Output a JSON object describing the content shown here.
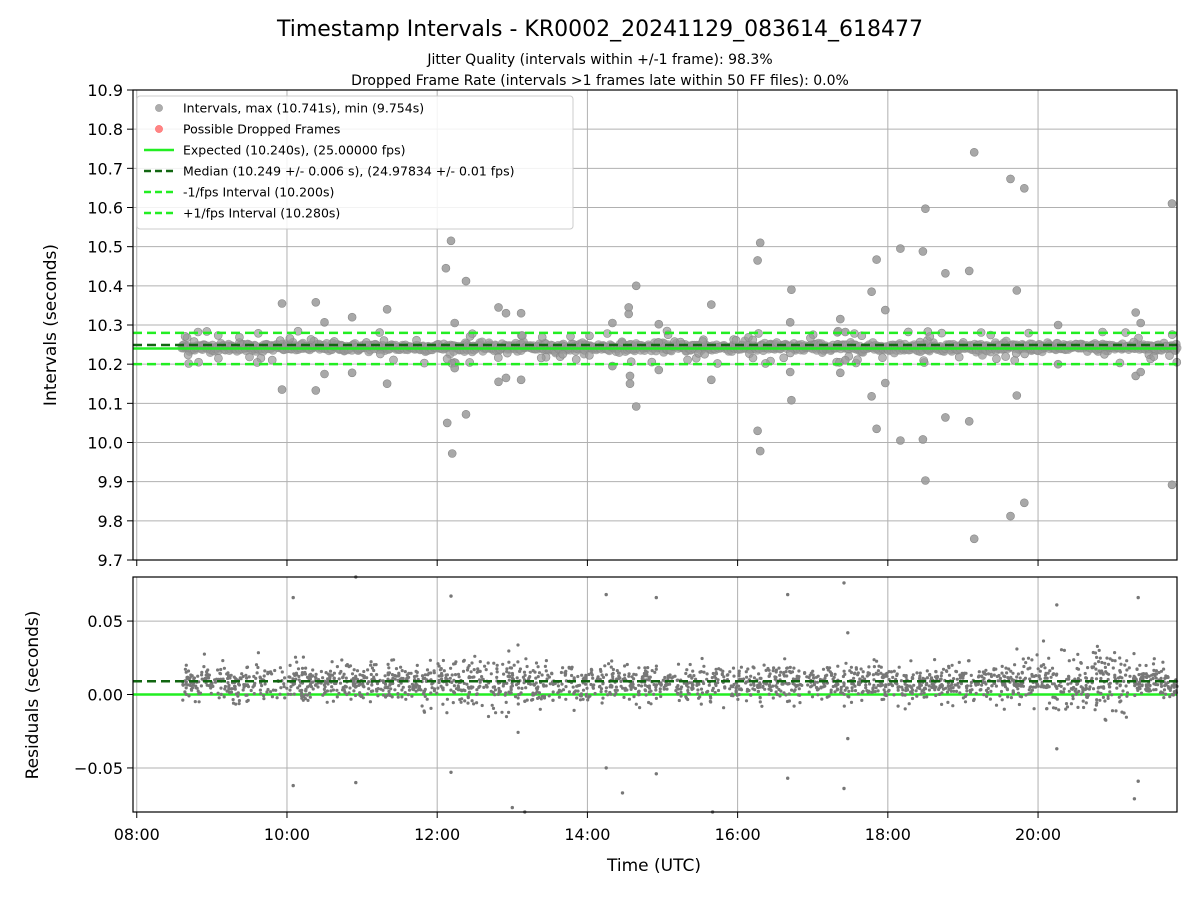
{
  "chart_data": [
    {
      "type": "scatter",
      "title": "Timestamp Intervals - KR0002_20241129_083614_618477",
      "subtitle_lines": [
        "Jitter Quality (intervals within +/-1 frame): 98.3%",
        "Dropped Frame Rate (intervals >1 frames late within 50 FF files): 0.0%"
      ],
      "xlabel": "",
      "ylabel": "Intervals (seconds)",
      "xlim_hours": [
        7.95,
        21.85
      ],
      "ylim": [
        9.7,
        10.9
      ],
      "yticks": [
        "9.7",
        "9.8",
        "9.9",
        "10.0",
        "10.1",
        "10.2",
        "10.3",
        "10.4",
        "10.5",
        "10.6",
        "10.7",
        "10.8",
        "10.9"
      ],
      "grid": true,
      "legend_position": "upper-left",
      "legend": [
        {
          "label": "Intervals, max (10.741s), min (9.754s)",
          "kind": "marker",
          "color": "#999999"
        },
        {
          "label": "Possible Dropped Frames",
          "kind": "marker",
          "color": "#ff6666"
        },
        {
          "label": "Expected (10.240s), (25.00000 fps)",
          "kind": "solid",
          "color": "#22ee22"
        },
        {
          "label": "Median (10.249 +/- 0.006 s), (24.97834 +/- 0.01 fps)",
          "kind": "dashed",
          "color": "#116611"
        },
        {
          "label": "-1/fps Interval (10.200s)",
          "kind": "dashed",
          "color": "#22ee22"
        },
        {
          "label": "+1/fps Interval (10.280s)",
          "kind": "dashed",
          "color": "#22ee22"
        }
      ],
      "reference_lines": {
        "expected": 10.24,
        "median": 10.249,
        "minus_one": 10.2,
        "plus_one": 10.28
      },
      "data_range_hours": [
        8.6,
        21.85
      ],
      "outliers": [
        {
          "x": "09:56",
          "y": 10.355
        },
        {
          "x": "09:56",
          "y": 10.135
        },
        {
          "x": "10:23",
          "y": 10.358
        },
        {
          "x": "10:23",
          "y": 10.133
        },
        {
          "x": "10:30",
          "y": 10.307
        },
        {
          "x": "10:30",
          "y": 10.175
        },
        {
          "x": "10:52",
          "y": 10.32
        },
        {
          "x": "10:52",
          "y": 10.178
        },
        {
          "x": "11:20",
          "y": 10.34
        },
        {
          "x": "11:20",
          "y": 10.15
        },
        {
          "x": "12:07",
          "y": 10.445
        },
        {
          "x": "12:08",
          "y": 10.05
        },
        {
          "x": "12:11",
          "y": 10.515
        },
        {
          "x": "12:12",
          "y": 9.972
        },
        {
          "x": "12:14",
          "y": 10.305
        },
        {
          "x": "12:14",
          "y": 10.19
        },
        {
          "x": "12:23",
          "y": 10.412
        },
        {
          "x": "12:23",
          "y": 10.072
        },
        {
          "x": "12:49",
          "y": 10.345
        },
        {
          "x": "12:49",
          "y": 10.155
        },
        {
          "x": "12:55",
          "y": 10.33
        },
        {
          "x": "12:55",
          "y": 10.165
        },
        {
          "x": "13:07",
          "y": 10.33
        },
        {
          "x": "13:07",
          "y": 10.16
        },
        {
          "x": "14:20",
          "y": 10.305
        },
        {
          "x": "14:20",
          "y": 10.195
        },
        {
          "x": "14:33",
          "y": 10.345
        },
        {
          "x": "14:33",
          "y": 10.328
        },
        {
          "x": "14:34",
          "y": 10.17
        },
        {
          "x": "14:34",
          "y": 10.15
        },
        {
          "x": "14:39",
          "y": 10.4
        },
        {
          "x": "14:39",
          "y": 10.092
        },
        {
          "x": "14:57",
          "y": 10.302
        },
        {
          "x": "14:57",
          "y": 10.185
        },
        {
          "x": "15:39",
          "y": 10.352
        },
        {
          "x": "15:39",
          "y": 10.16
        },
        {
          "x": "16:16",
          "y": 10.465
        },
        {
          "x": "16:16",
          "y": 10.03
        },
        {
          "x": "16:18",
          "y": 10.51
        },
        {
          "x": "16:18",
          "y": 9.978
        },
        {
          "x": "16:43",
          "y": 10.39
        },
        {
          "x": "16:43",
          "y": 10.108
        },
        {
          "x": "16:42",
          "y": 10.307
        },
        {
          "x": "16:42",
          "y": 10.18
        },
        {
          "x": "17:22",
          "y": 10.315
        },
        {
          "x": "17:22",
          "y": 10.178
        },
        {
          "x": "17:26",
          "y": 10.282
        },
        {
          "x": "17:26",
          "y": 10.21
        },
        {
          "x": "17:47",
          "y": 10.385
        },
        {
          "x": "17:47",
          "y": 10.118
        },
        {
          "x": "17:51",
          "y": 10.467
        },
        {
          "x": "17:51",
          "y": 10.035
        },
        {
          "x": "17:58",
          "y": 10.338
        },
        {
          "x": "17:58",
          "y": 10.152
        },
        {
          "x": "18:10",
          "y": 10.495
        },
        {
          "x": "18:10",
          "y": 10.005
        },
        {
          "x": "18:28",
          "y": 10.488
        },
        {
          "x": "18:28",
          "y": 10.008
        },
        {
          "x": "18:30",
          "y": 10.597
        },
        {
          "x": "18:30",
          "y": 9.903
        },
        {
          "x": "18:46",
          "y": 10.432
        },
        {
          "x": "18:46",
          "y": 10.064
        },
        {
          "x": "19:05",
          "y": 10.438
        },
        {
          "x": "19:05",
          "y": 10.054
        },
        {
          "x": "19:09",
          "y": 10.741
        },
        {
          "x": "19:09",
          "y": 9.754
        },
        {
          "x": "19:38",
          "y": 10.673
        },
        {
          "x": "19:38",
          "y": 9.812
        },
        {
          "x": "19:43",
          "y": 10.388
        },
        {
          "x": "19:43",
          "y": 10.12
        },
        {
          "x": "19:49",
          "y": 10.649
        },
        {
          "x": "19:49",
          "y": 9.846
        },
        {
          "x": "20:16",
          "y": 10.3
        },
        {
          "x": "20:16",
          "y": 10.2
        },
        {
          "x": "21:18",
          "y": 10.332
        },
        {
          "x": "21:18",
          "y": 10.17
        },
        {
          "x": "21:22",
          "y": 10.305
        },
        {
          "x": "21:22",
          "y": 10.18
        },
        {
          "x": "21:47",
          "y": 10.61
        },
        {
          "x": "21:47",
          "y": 9.892
        }
      ]
    },
    {
      "type": "scatter",
      "xlabel": "Time (UTC)",
      "ylabel": "Residuals (seconds)",
      "xlim_hours": [
        7.95,
        21.85
      ],
      "ylim": [
        -0.08,
        0.08
      ],
      "yticks": [
        "−0.05",
        "0.00",
        "0.05"
      ],
      "xticks": [
        "08:00",
        "10:00",
        "12:00",
        "14:00",
        "16:00",
        "18:00",
        "20:00"
      ],
      "grid": true,
      "reference_lines": {
        "expected": 0.0,
        "median": 0.009
      },
      "outliers": [
        {
          "x": "10:05",
          "y": 0.066
        },
        {
          "x": "10:05",
          "y": -0.062
        },
        {
          "x": "10:55",
          "y": 0.08
        },
        {
          "x": "10:55",
          "y": -0.06
        },
        {
          "x": "12:11",
          "y": 0.067
        },
        {
          "x": "12:11",
          "y": -0.053
        },
        {
          "x": "13:00",
          "y": -0.077
        },
        {
          "x": "13:10",
          "y": -0.08
        },
        {
          "x": "14:15",
          "y": 0.068
        },
        {
          "x": "14:15",
          "y": -0.05
        },
        {
          "x": "14:28",
          "y": -0.067
        },
        {
          "x": "14:55",
          "y": 0.066
        },
        {
          "x": "14:55",
          "y": -0.054
        },
        {
          "x": "15:40",
          "y": -0.08
        },
        {
          "x": "16:40",
          "y": 0.068
        },
        {
          "x": "16:40",
          "y": -0.057
        },
        {
          "x": "17:25",
          "y": 0.076
        },
        {
          "x": "17:25",
          "y": -0.064
        },
        {
          "x": "17:28",
          "y": 0.042
        },
        {
          "x": "17:28",
          "y": -0.03
        },
        {
          "x": "20:15",
          "y": 0.061
        },
        {
          "x": "20:15",
          "y": -0.037
        },
        {
          "x": "21:20",
          "y": 0.066
        },
        {
          "x": "21:20",
          "y": -0.059
        },
        {
          "x": "21:17",
          "y": -0.071
        }
      ]
    }
  ]
}
